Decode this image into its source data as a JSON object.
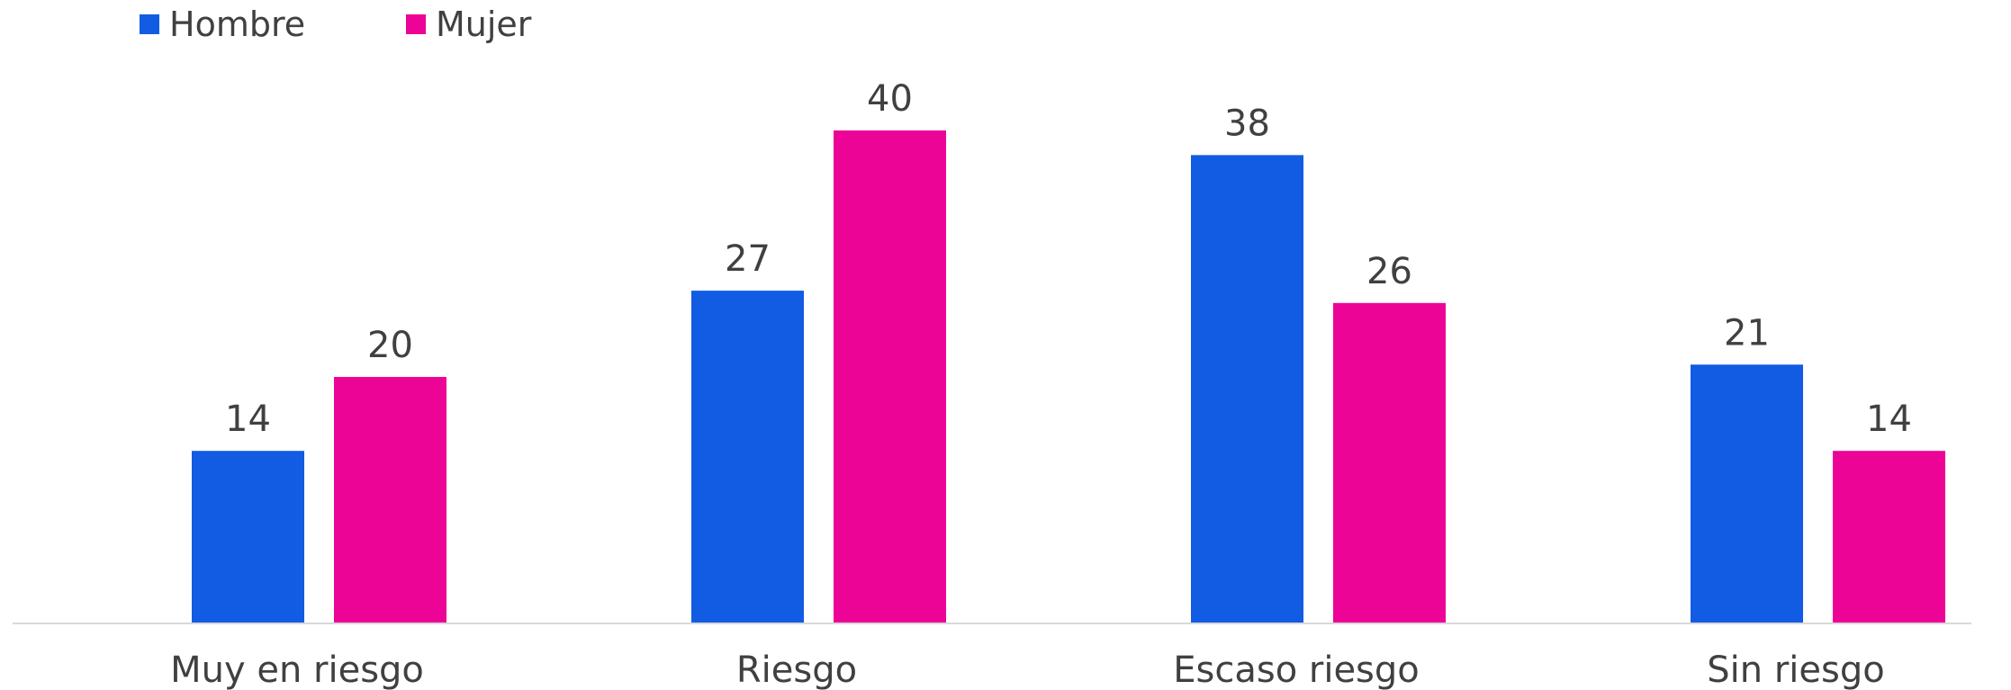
{
  "chart_data": {
    "type": "bar",
    "title": "",
    "xlabel": "",
    "ylabel": "",
    "categories": [
      "Muy en riesgo",
      "Riesgo",
      "Escaso riesgo",
      "Sin riesgo"
    ],
    "series": [
      {
        "name": "Hombre",
        "values": [
          14,
          27,
          38,
          21
        ],
        "color": "#125BE3"
      },
      {
        "name": "Mujer",
        "values": [
          20,
          40,
          26,
          14
        ],
        "color": "#EC0497"
      }
    ],
    "ylim": [
      0,
      40
    ],
    "grid": false,
    "legend_position": "top-left",
    "axis_color": "#D9D9D9"
  }
}
